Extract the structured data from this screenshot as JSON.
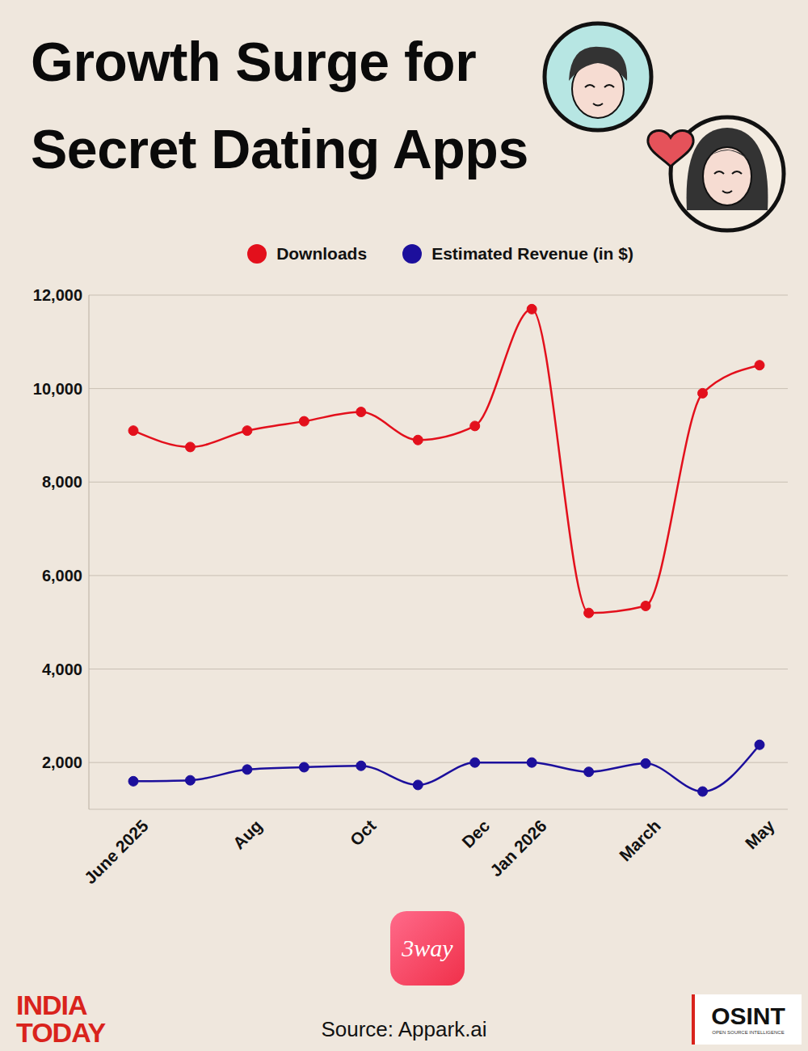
{
  "chart_data": {
    "type": "line",
    "title": "Growth Surge for Secret Dating Apps",
    "categories": [
      "June 2025",
      null,
      "Aug",
      null,
      "Oct",
      null,
      "Dec",
      "Jan 2026",
      null,
      "March",
      null,
      "May"
    ],
    "series": [
      {
        "name": "Downloads",
        "color": "#e3101c",
        "marker": "circle",
        "values": [
          9100,
          8750,
          9100,
          9300,
          9500,
          8900,
          9200,
          11700,
          5200,
          5350,
          9900,
          10500
        ]
      },
      {
        "name": "Estimated Revenue (in $)",
        "color": "#1c0f9c",
        "marker": "circle",
        "values": [
          1600,
          1620,
          1850,
          1900,
          1930,
          1520,
          2000,
          2000,
          1800,
          1980,
          1380,
          2380
        ]
      }
    ],
    "ylim": [
      1000,
      12000
    ],
    "yticks": [
      {
        "value": 2000,
        "label": "2,000"
      },
      {
        "value": 4000,
        "label": "4,000"
      },
      {
        "value": 6000,
        "label": "6,000"
      },
      {
        "value": 8000,
        "label": "8,000"
      },
      {
        "value": 10000,
        "label": "10,000"
      },
      {
        "value": 12000,
        "label": "12,000"
      }
    ],
    "grid": true,
    "legend": "top",
    "app_name": "3way",
    "source": "Source: Appark.ai",
    "publisher": "INDIA TODAY",
    "logo": "OSINT",
    "logo_subtitle": "OPEN SOURCE INTELLIGENCE"
  }
}
